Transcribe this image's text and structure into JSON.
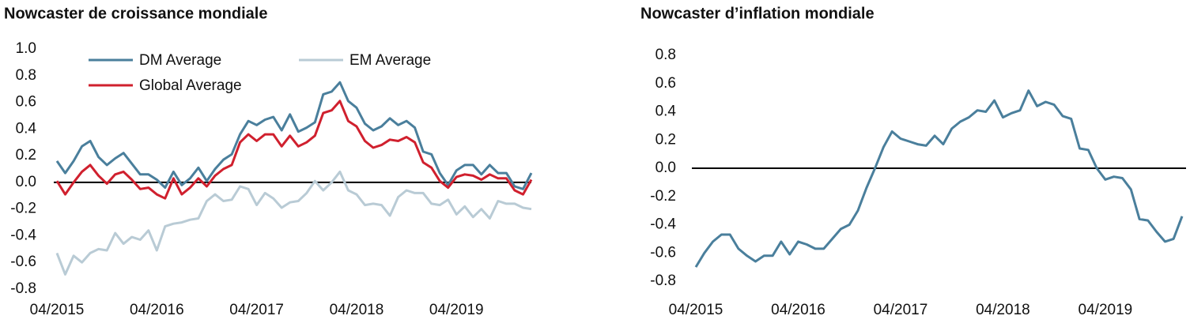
{
  "chart_data": [
    {
      "type": "line",
      "title": "Nowcaster de croissance mondiale",
      "categories": [
        "04/2015",
        null,
        null,
        null,
        null,
        null,
        null,
        null,
        null,
        null,
        null,
        null,
        "04/2016",
        null,
        null,
        null,
        null,
        null,
        null,
        null,
        null,
        null,
        null,
        null,
        "04/2017",
        null,
        null,
        null,
        null,
        null,
        null,
        null,
        null,
        null,
        null,
        null,
        "04/2018",
        null,
        null,
        null,
        null,
        null,
        null,
        null,
        null,
        null,
        null,
        null,
        "04/2019",
        null,
        null,
        null,
        null,
        null,
        null,
        null,
        null,
        null
      ],
      "series": [
        {
          "name": "DM Average",
          "color": "#4a7f9c",
          "values": [
            0.16,
            0.07,
            0.16,
            0.27,
            0.31,
            0.19,
            0.13,
            0.18,
            0.22,
            0.14,
            0.06,
            0.06,
            0.02,
            -0.04,
            0.08,
            -0.02,
            0.03,
            0.11,
            0.01,
            0.1,
            0.17,
            0.21,
            0.36,
            0.46,
            0.43,
            0.47,
            0.49,
            0.39,
            0.51,
            0.38,
            0.41,
            0.45,
            0.66,
            0.68,
            0.75,
            0.61,
            0.56,
            0.44,
            0.39,
            0.42,
            0.48,
            0.43,
            0.46,
            0.41,
            0.23,
            0.21,
            0.07,
            -0.02,
            0.09,
            0.13,
            0.13,
            0.06,
            0.13,
            0.07,
            0.07,
            -0.03,
            -0.05,
            0.07
          ]
        },
        {
          "name": "EM Average",
          "color": "#b9cbd5",
          "values": [
            -0.53,
            -0.69,
            -0.55,
            -0.6,
            -0.53,
            -0.5,
            -0.51,
            -0.38,
            -0.46,
            -0.41,
            -0.43,
            -0.36,
            -0.51,
            -0.33,
            -0.31,
            -0.3,
            -0.28,
            -0.27,
            -0.14,
            -0.09,
            -0.14,
            -0.13,
            -0.03,
            -0.05,
            -0.17,
            -0.08,
            -0.12,
            -0.19,
            -0.15,
            -0.14,
            -0.08,
            0.01,
            -0.06,
            0.0,
            0.08,
            -0.06,
            -0.09,
            -0.17,
            -0.16,
            -0.17,
            -0.25,
            -0.11,
            -0.06,
            -0.08,
            -0.08,
            -0.16,
            -0.17,
            -0.13,
            -0.24,
            -0.18,
            -0.26,
            -0.2,
            -0.27,
            -0.14,
            -0.16,
            -0.16,
            -0.19,
            -0.2
          ]
        },
        {
          "name": "Global Average",
          "color": "#d0202e",
          "values": [
            0.01,
            -0.09,
            0.0,
            0.08,
            0.13,
            0.05,
            -0.01,
            0.06,
            0.08,
            0.02,
            -0.05,
            -0.04,
            -0.09,
            -0.12,
            0.03,
            -0.09,
            -0.04,
            0.03,
            -0.03,
            0.05,
            0.1,
            0.13,
            0.3,
            0.36,
            0.31,
            0.36,
            0.36,
            0.27,
            0.35,
            0.27,
            0.3,
            0.35,
            0.52,
            0.54,
            0.61,
            0.46,
            0.42,
            0.31,
            0.26,
            0.28,
            0.32,
            0.31,
            0.34,
            0.3,
            0.15,
            0.11,
            0.01,
            -0.04,
            0.04,
            0.06,
            0.05,
            0.02,
            0.06,
            0.03,
            0.03,
            -0.06,
            -0.09,
            0.02
          ]
        }
      ],
      "ylim": [
        -0.8,
        1.0
      ],
      "yticks": [
        -0.8,
        -0.6,
        -0.4,
        -0.2,
        {
          "value": 0,
          "label": "0.0"
        },
        0.2,
        0.4,
        0.6,
        0.8,
        {
          "value": 1,
          "label": "1.0"
        }
      ],
      "zero_line": true,
      "legend": "top"
    },
    {
      "type": "line",
      "title": "Nowcaster d’inflation mondiale",
      "categories": [
        "04/2015",
        null,
        null,
        null,
        null,
        null,
        null,
        null,
        null,
        null,
        null,
        null,
        "04/2016",
        null,
        null,
        null,
        null,
        null,
        null,
        null,
        null,
        null,
        null,
        null,
        "04/2017",
        null,
        null,
        null,
        null,
        null,
        null,
        null,
        null,
        null,
        null,
        null,
        "04/2018",
        null,
        null,
        null,
        null,
        null,
        null,
        null,
        null,
        null,
        null,
        null,
        "04/2019",
        null,
        null,
        null,
        null,
        null,
        null,
        null,
        null,
        null
      ],
      "series": [
        {
          "color": "#4a7f9c",
          "values": [
            -0.7,
            -0.6,
            -0.52,
            -0.47,
            -0.47,
            -0.57,
            -0.62,
            -0.66,
            -0.62,
            -0.62,
            -0.52,
            -0.61,
            -0.52,
            -0.54,
            -0.57,
            -0.57,
            -0.5,
            -0.43,
            -0.4,
            -0.3,
            -0.14,
            0.0,
            0.15,
            0.26,
            0.21,
            0.19,
            0.17,
            0.16,
            0.23,
            0.17,
            0.28,
            0.33,
            0.36,
            0.41,
            0.4,
            0.48,
            0.36,
            0.39,
            0.41,
            0.55,
            0.44,
            0.47,
            0.45,
            0.37,
            0.35,
            0.14,
            0.13,
            0.0,
            -0.08,
            -0.06,
            -0.07,
            -0.15,
            -0.36,
            -0.37,
            -0.45,
            -0.52,
            -0.5,
            -0.34
          ]
        }
      ],
      "ylim": [
        -0.8,
        0.8
      ],
      "yticks": [
        -0.8,
        -0.6,
        -0.4,
        -0.2,
        {
          "value": 0,
          "label": "0.0"
        },
        0.2,
        0.4,
        0.6,
        0.8
      ],
      "zero_line": true
    }
  ]
}
